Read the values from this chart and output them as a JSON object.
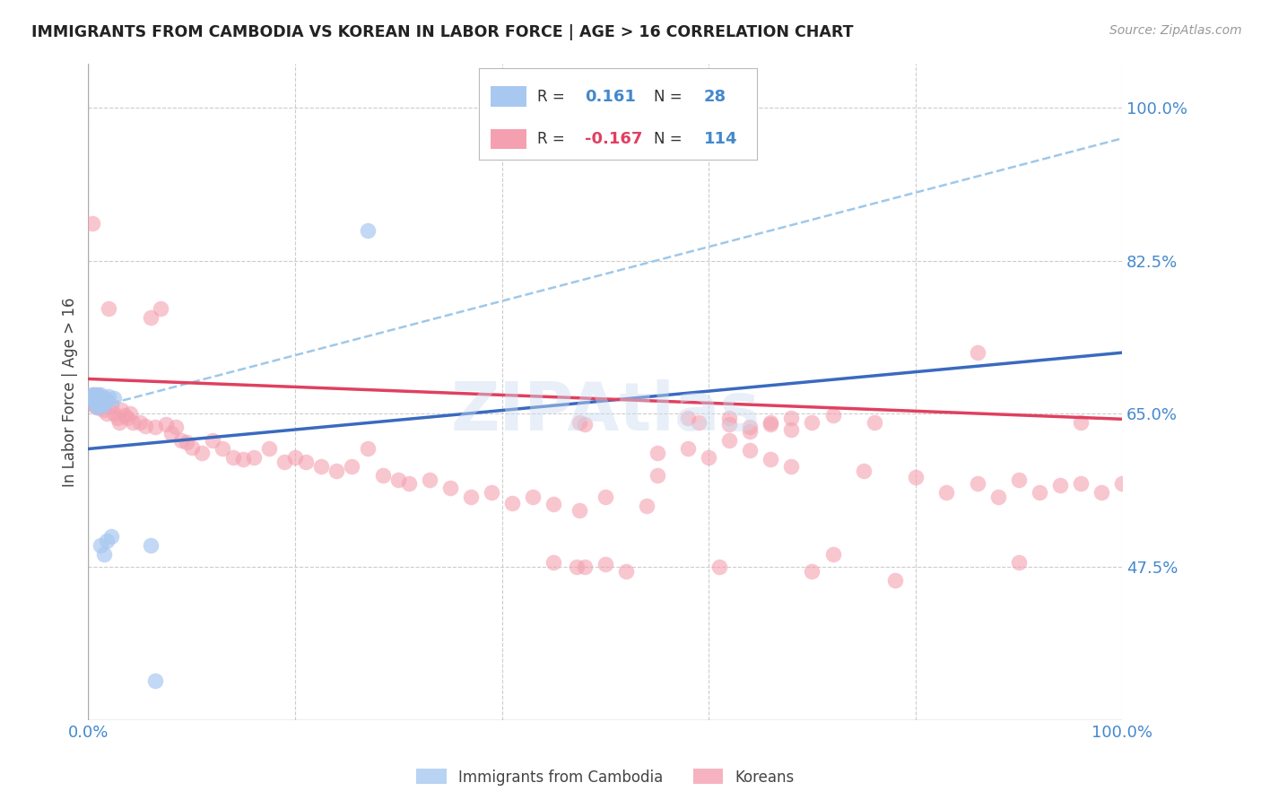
{
  "title": "IMMIGRANTS FROM CAMBODIA VS KOREAN IN LABOR FORCE | AGE > 16 CORRELATION CHART",
  "source": "Source: ZipAtlas.com",
  "ylabel": "In Labor Force | Age > 16",
  "xlim": [
    0.0,
    1.0
  ],
  "ylim": [
    0.3,
    1.05
  ],
  "yticks": [
    0.475,
    0.65,
    0.825,
    1.0
  ],
  "ytick_labels": [
    "47.5%",
    "65.0%",
    "82.5%",
    "100.0%"
  ],
  "xticks": [
    0.0,
    0.2,
    0.4,
    0.6,
    0.8,
    1.0
  ],
  "xtick_labels": [
    "0.0%",
    "",
    "",
    "",
    "",
    "100.0%"
  ],
  "cambodia_R": 0.161,
  "cambodia_N": 28,
  "korean_R": -0.167,
  "korean_N": 114,
  "cambodia_color": "#a8c8f0",
  "korean_color": "#f4a0b0",
  "cambodia_line_color": "#3a6abf",
  "korean_line_color": "#e04060",
  "dashed_line_color": "#a0c8e8",
  "background_color": "#ffffff",
  "grid_color": "#cccccc",
  "tick_label_color": "#4488cc",
  "title_color": "#222222",
  "source_color": "#999999",
  "ylabel_color": "#444444",
  "watermark": "ZIPAtlas",
  "legend_R_color": "#444444",
  "legend_N_color": "#444444",
  "legend_val_color": "#4488cc",
  "legend_neg_color": "#e04060",
  "camb_line_x0": 0.0,
  "camb_line_y0": 0.61,
  "camb_line_x1": 1.0,
  "camb_line_y1": 0.72,
  "kor_line_x0": 0.0,
  "kor_line_y0": 0.69,
  "kor_line_x1": 1.0,
  "kor_line_y1": 0.644,
  "dash_line_x0": 0.0,
  "dash_line_y0": 0.655,
  "dash_line_x1": 1.0,
  "dash_line_y1": 0.965
}
